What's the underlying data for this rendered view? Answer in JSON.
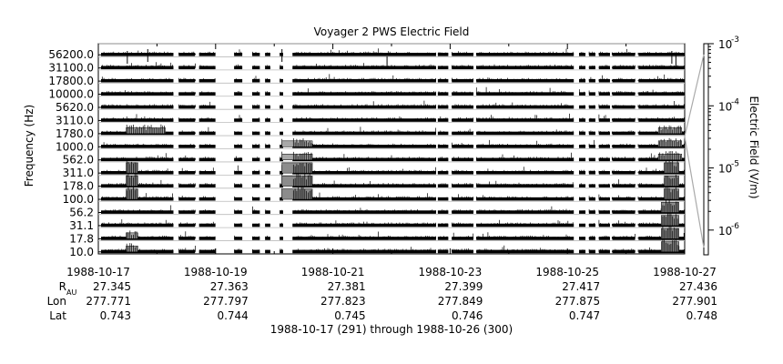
{
  "chart_data": {
    "type": "heatmap",
    "title": "Voyager 2 PWS Electric Field",
    "ylabel": "Frequency (Hz)",
    "xlabel": "1988-10-17 (291) through 1988-10-26 (300)",
    "colorbar": {
      "label": "Electric Field (V/m)",
      "scale": "log",
      "range": [
        4e-07,
        0.001
      ],
      "ticks": [
        {
          "base": "10",
          "exp": "-3"
        },
        {
          "base": "10",
          "exp": "-4"
        },
        {
          "base": "10",
          "exp": "-5"
        },
        {
          "base": "10",
          "exp": "-6"
        }
      ]
    },
    "channels": [
      "10.0",
      "17.8",
      "31.1",
      "56.2",
      "100.0",
      "178.0",
      "311.0",
      "562.0",
      "1000.0",
      "1780.0",
      "3110.0",
      "5620.0",
      "10000.0",
      "17800.0",
      "31100.0",
      "56200.0"
    ],
    "x_range_days": [
      0,
      10
    ],
    "x_ticks": [
      "1988-10-17",
      "1988-10-19",
      "1988-10-21",
      "1988-10-23",
      "1988-10-25",
      "1988-10-27"
    ],
    "ephemeris": {
      "rows": [
        {
          "label": "R",
          "label_sub": "AU",
          "values": [
            "27.345",
            "27.363",
            "27.381",
            "27.399",
            "27.417",
            "27.436"
          ]
        },
        {
          "label": "Lon",
          "label_sub": "",
          "values": [
            "277.771",
            "277.797",
            "277.823",
            "277.849",
            "277.875",
            "277.901"
          ]
        },
        {
          "label": "Lat",
          "label_sub": "",
          "values": [
            "0.743",
            "0.744",
            "0.745",
            "0.746",
            "0.747",
            "0.748"
          ]
        }
      ]
    },
    "data_gaps_days": [
      [
        1.25,
        1.33
      ],
      [
        1.62,
        1.68
      ],
      [
        1.97,
        2.27
      ],
      [
        2.42,
        2.58
      ],
      [
        2.72,
        2.8
      ],
      [
        2.9,
        3.05
      ],
      [
        3.12,
        3.27
      ],
      [
        5.74,
        5.76
      ],
      [
        5.95,
        6.0
      ],
      [
        6.38,
        6.42
      ],
      [
        8.1,
        8.18
      ],
      [
        8.3,
        8.35
      ],
      [
        8.47,
        8.52
      ],
      [
        8.72,
        8.75
      ],
      [
        9.15,
        9.2
      ]
    ],
    "enhanced_segments": [
      {
        "day_range": [
          0.43,
          0.63
        ],
        "channels": [
          "100.0",
          "178.0",
          "311.0"
        ],
        "level": "high"
      },
      {
        "day_range": [
          0.43,
          0.63
        ],
        "channels": [
          "10.0",
          "17.8"
        ],
        "level": "medium"
      },
      {
        "day_range": [
          0.43,
          1.1
        ],
        "channels": [
          "1780.0"
        ],
        "level": "medium"
      },
      {
        "day_range": [
          3.1,
          3.62
        ],
        "channels": [
          "100.0",
          "178.0",
          "311.0"
        ],
        "level": "high"
      },
      {
        "day_range": [
          3.1,
          3.62
        ],
        "channels": [
          "562.0",
          "1000.0"
        ],
        "level": "medium"
      },
      {
        "day_range": [
          9.65,
          9.9
        ],
        "channels": [
          "100.0",
          "178.0",
          "311.0"
        ],
        "level": "high"
      },
      {
        "day_range": [
          9.6,
          9.9
        ],
        "channels": [
          "10.0",
          "17.8",
          "31.1",
          "56.2"
        ],
        "level": "high"
      },
      {
        "day_range": [
          9.55,
          9.95
        ],
        "channels": [
          "562.0",
          "1000.0",
          "1780.0"
        ],
        "level": "medium"
      }
    ]
  }
}
